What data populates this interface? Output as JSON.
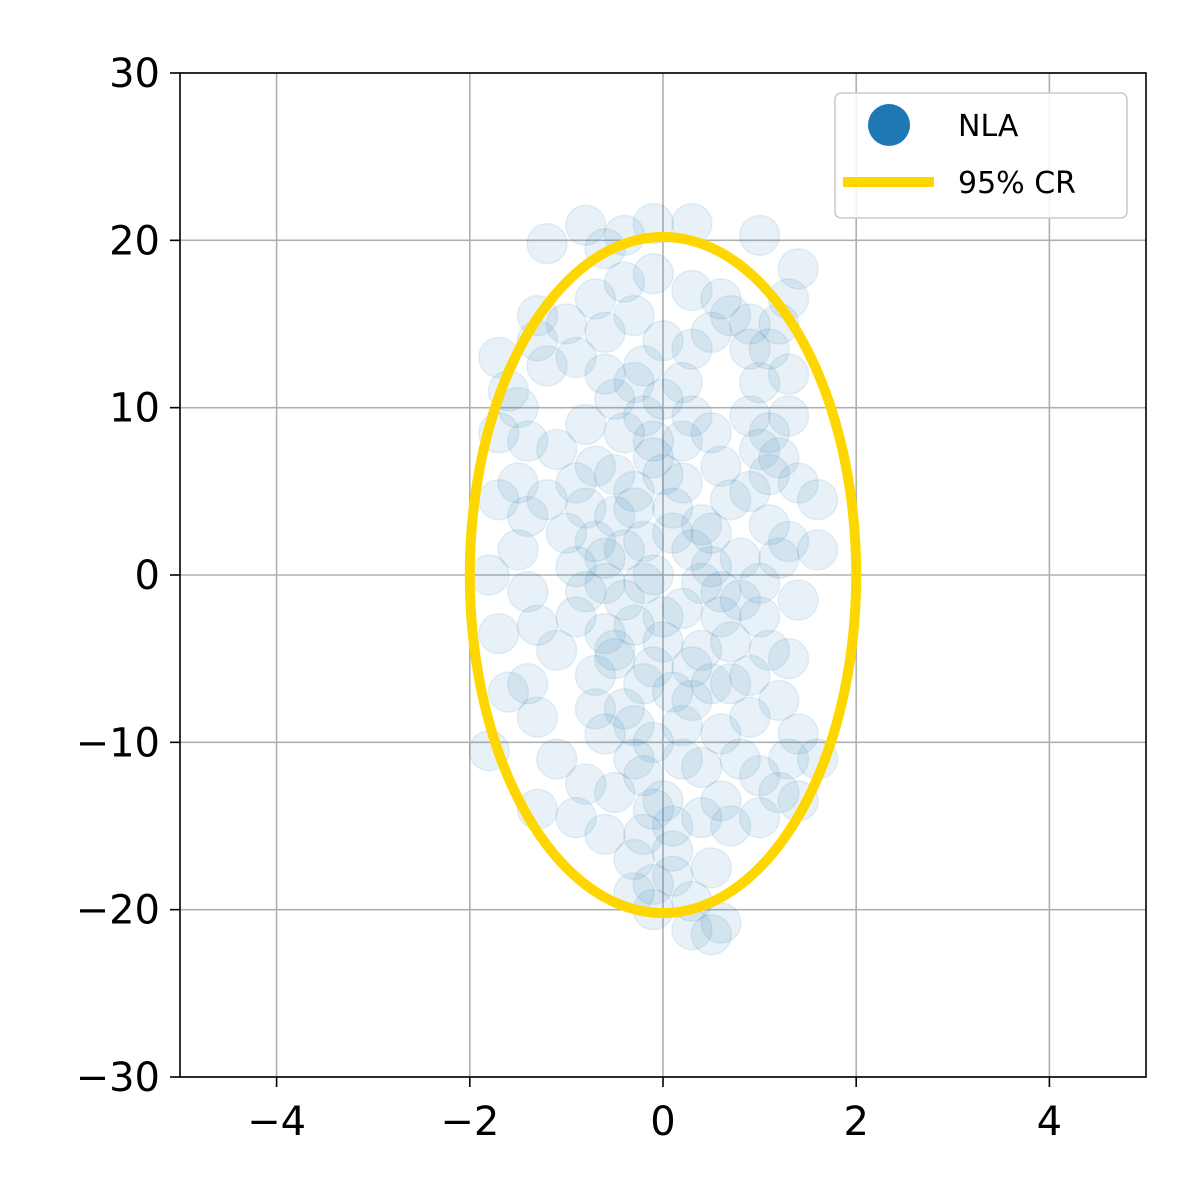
{
  "chart_data": {
    "type": "scatter",
    "title": "",
    "xlabel": "",
    "ylabel": "",
    "xlim": [
      -5,
      5
    ],
    "ylim": [
      -30,
      30
    ],
    "x_ticks": [
      -4,
      -2,
      0,
      2,
      4
    ],
    "x_tick_labels": [
      "−4",
      "−2",
      "0",
      "2",
      "4"
    ],
    "y_ticks": [
      -30,
      -20,
      -10,
      0,
      10,
      20,
      30
    ],
    "y_tick_labels": [
      "−30",
      "−20",
      "−10",
      "0",
      "10",
      "20",
      "30"
    ],
    "grid": true,
    "legend": {
      "placement": "upper right",
      "entries": [
        {
          "label": "NLA",
          "kind": "marker",
          "color": "#1f77b4"
        },
        {
          "label": "95% CR",
          "kind": "line",
          "color": "#ffd700"
        }
      ]
    },
    "series": [
      {
        "name": "NLA",
        "kind": "scatter",
        "color": "#1f77b4",
        "alpha": 0.1,
        "points": [
          [
            -0.4,
            8.5
          ],
          [
            -0.2,
            9.5
          ],
          [
            -0.1,
            7.0
          ],
          [
            -0.3,
            5.0
          ],
          [
            -0.5,
            3.5
          ],
          [
            -0.2,
            2.0
          ],
          [
            -0.6,
            1.0
          ],
          [
            -0.1,
            0.0
          ],
          [
            -0.4,
            -1.5
          ],
          [
            -0.3,
            -3.0
          ],
          [
            -0.5,
            -5.0
          ],
          [
            -0.2,
            -6.5
          ],
          [
            -0.4,
            -8.0
          ],
          [
            0.0,
            -4.0
          ],
          [
            0.2,
            -2.0
          ],
          [
            0.3,
            1.5
          ],
          [
            0.1,
            4.0
          ],
          [
            0.0,
            6.0
          ],
          [
            0.2,
            8.0
          ],
          [
            -0.7,
            6.5
          ],
          [
            -0.8,
            4.0
          ],
          [
            -0.7,
            2.0
          ],
          [
            -0.8,
            -1.0
          ],
          [
            -0.6,
            -3.5
          ],
          [
            -0.7,
            -6.0
          ],
          [
            0.4,
            -4.5
          ],
          [
            0.5,
            -6.5
          ],
          [
            0.3,
            -7.5
          ],
          [
            0.6,
            -2.5
          ],
          [
            0.5,
            0.5
          ],
          [
            0.4,
            3.0
          ],
          [
            -0.9,
            0.5
          ],
          [
            -0.9,
            -2.5
          ],
          [
            -1.0,
            2.5
          ],
          [
            -0.9,
            5.5
          ],
          [
            -0.5,
            10.5
          ],
          [
            -0.3,
            11.5
          ],
          [
            0.0,
            10.5
          ],
          [
            0.3,
            9.5
          ],
          [
            0.5,
            8.5
          ],
          [
            0.6,
            6.5
          ],
          [
            0.7,
            4.5
          ],
          [
            0.8,
            1.0
          ],
          [
            0.8,
            -1.5
          ],
          [
            0.7,
            -4.0
          ],
          [
            0.2,
            -9.0
          ],
          [
            -0.1,
            -10.0
          ],
          [
            -0.6,
            -9.5
          ],
          [
            -0.2,
            -12.0
          ],
          [
            0.0,
            -13.5
          ],
          [
            0.1,
            -15.0
          ],
          [
            -0.1,
            -14.0
          ],
          [
            0.1,
            -16.5
          ],
          [
            -0.3,
            -11.0
          ],
          [
            0.4,
            -11.5
          ],
          [
            -1.1,
            -4.5
          ],
          [
            -1.2,
            4.5
          ],
          [
            -1.1,
            7.5
          ],
          [
            -0.8,
            9.0
          ],
          [
            -0.6,
            12.0
          ],
          [
            -0.9,
            13.0
          ],
          [
            -0.6,
            14.5
          ],
          [
            -0.3,
            15.5
          ],
          [
            0.0,
            14.0
          ],
          [
            0.3,
            13.5
          ],
          [
            0.5,
            14.5
          ],
          [
            0.7,
            15.5
          ],
          [
            0.9,
            13.5
          ],
          [
            1.0,
            11.5
          ],
          [
            0.9,
            9.5
          ],
          [
            1.1,
            8.5
          ],
          [
            1.2,
            7.0
          ],
          [
            1.1,
            6.0
          ],
          [
            1.0,
            7.5
          ],
          [
            0.9,
            5.0
          ],
          [
            1.1,
            3.0
          ],
          [
            1.2,
            1.0
          ],
          [
            1.0,
            -0.5
          ],
          [
            1.0,
            -2.5
          ],
          [
            1.1,
            -4.5
          ],
          [
            0.9,
            -6.0
          ],
          [
            1.2,
            -7.5
          ],
          [
            0.9,
            -8.5
          ],
          [
            0.6,
            -9.5
          ],
          [
            0.8,
            -11.0
          ],
          [
            1.0,
            -12.0
          ],
          [
            1.2,
            -13.0
          ],
          [
            0.6,
            -13.5
          ],
          [
            0.4,
            -14.5
          ],
          [
            -0.2,
            -15.5
          ],
          [
            -0.5,
            -13.0
          ],
          [
            -0.8,
            -12.5
          ],
          [
            -1.1,
            -11.0
          ],
          [
            -1.3,
            -8.5
          ],
          [
            -1.4,
            -6.5
          ],
          [
            -1.3,
            -3.0
          ],
          [
            -1.4,
            -1.0
          ],
          [
            -1.5,
            1.5
          ],
          [
            -1.4,
            3.5
          ],
          [
            -1.5,
            5.5
          ],
          [
            -1.4,
            8.0
          ],
          [
            -1.5,
            10.0
          ],
          [
            -1.2,
            12.5
          ],
          [
            -1.0,
            15.0
          ],
          [
            -0.7,
            16.5
          ],
          [
            -0.4,
            17.5
          ],
          [
            -0.1,
            18.0
          ],
          [
            0.3,
            17.0
          ],
          [
            0.6,
            16.5
          ],
          [
            0.9,
            15.0
          ],
          [
            1.1,
            13.5
          ],
          [
            1.3,
            12.0
          ],
          [
            1.3,
            9.5
          ],
          [
            1.4,
            5.5
          ],
          [
            1.3,
            2.0
          ],
          [
            1.4,
            -1.5
          ],
          [
            1.3,
            -5.0
          ],
          [
            1.4,
            -9.5
          ],
          [
            1.3,
            -11.0
          ],
          [
            -1.6,
            11.0
          ],
          [
            -1.7,
            8.5
          ],
          [
            -1.7,
            4.5
          ],
          [
            -1.8,
            0.0
          ],
          [
            -1.7,
            -3.5
          ],
          [
            -1.6,
            -7.0
          ],
          [
            -1.8,
            -10.5
          ],
          [
            -1.3,
            -14.0
          ],
          [
            -0.9,
            -14.5
          ],
          [
            -0.6,
            -15.5
          ],
          [
            -0.3,
            -17.0
          ],
          [
            -0.1,
            -18.5
          ],
          [
            0.1,
            -18.0
          ],
          [
            0.3,
            -19.5
          ],
          [
            0.5,
            -17.5
          ],
          [
            0.7,
            -15.0
          ],
          [
            1.0,
            -14.5
          ],
          [
            -1.3,
            15.5
          ],
          [
            -0.6,
            19.5
          ],
          [
            -0.4,
            20.3
          ],
          [
            -0.1,
            21.0
          ],
          [
            0.3,
            21.0
          ],
          [
            -1.2,
            19.8
          ],
          [
            -0.8,
            20.9
          ],
          [
            1.0,
            20.3
          ],
          [
            1.3,
            16.5
          ],
          [
            1.4,
            18.3
          ],
          [
            1.2,
            15.0
          ],
          [
            1.6,
            1.5
          ],
          [
            1.6,
            4.5
          ],
          [
            1.6,
            -11.0
          ],
          [
            1.4,
            -13.5
          ],
          [
            -0.1,
            -20.0
          ],
          [
            0.5,
            -21.5
          ],
          [
            0.3,
            -21.2
          ],
          [
            -0.3,
            -19.0
          ],
          [
            0.6,
            -20.8
          ],
          [
            -1.7,
            13.0
          ],
          [
            -1.3,
            14.0
          ],
          [
            -0.2,
            12.5
          ],
          [
            0.2,
            11.5
          ],
          [
            -0.5,
            6.0
          ],
          [
            0.1,
            2.5
          ],
          [
            -0.2,
            -0.5
          ],
          [
            0.0,
            -2.5
          ],
          [
            -0.1,
            -5.5
          ],
          [
            0.1,
            -7.0
          ],
          [
            -0.3,
            4.0
          ],
          [
            -0.1,
            8.0
          ],
          [
            0.2,
            5.5
          ],
          [
            0.4,
            -0.5
          ],
          [
            -0.6,
            -0.5
          ],
          [
            -0.4,
            1.5
          ],
          [
            0.5,
            2.5
          ],
          [
            0.6,
            -1.0
          ],
          [
            0.7,
            -6.5
          ],
          [
            0.3,
            -5.5
          ],
          [
            -0.5,
            -4.5
          ],
          [
            -0.7,
            -8.0
          ],
          [
            -0.3,
            -9.0
          ],
          [
            0.2,
            -11.0
          ]
        ]
      },
      {
        "name": "95% CR",
        "kind": "ellipse",
        "color": "#ffd700",
        "center": [
          0,
          0
        ],
        "semi_axes": [
          2.0,
          20.2
        ]
      }
    ]
  }
}
